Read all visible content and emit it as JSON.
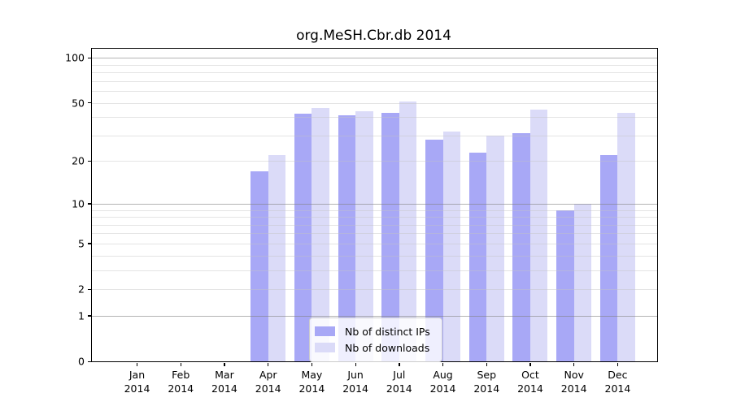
{
  "title": "org.MeSH.Cbr.db 2014",
  "chart_data": {
    "type": "bar",
    "title": "org.MeSH.Cbr.db 2014",
    "year": "2014",
    "categories": [
      "Jan",
      "Feb",
      "Mar",
      "Apr",
      "May",
      "Jun",
      "Jul",
      "Aug",
      "Sep",
      "Oct",
      "Nov",
      "Dec"
    ],
    "series": [
      {
        "name": "Nb of distinct IPs",
        "color": "#a8a8f6",
        "values": [
          0,
          0,
          0,
          17,
          42,
          41,
          43,
          28,
          23,
          31,
          9,
          22
        ]
      },
      {
        "name": "Nb of downloads",
        "color": "#dbdbf8",
        "values": [
          0,
          0,
          0,
          22,
          46,
          44,
          51,
          32,
          30,
          45,
          10,
          43
        ]
      }
    ],
    "ylabel": "",
    "xlabel": "",
    "yscale": "log1p",
    "ylim": [
      0,
      115
    ],
    "yticks": [
      0,
      1,
      2,
      5,
      10,
      20,
      50,
      100
    ],
    "gridlines_major": [
      1,
      10,
      100
    ],
    "gridlines_minor": [
      2,
      3,
      4,
      5,
      6,
      7,
      8,
      9,
      20,
      30,
      40,
      50,
      60,
      70,
      80,
      90
    ],
    "legend_position": "lower center",
    "grid": true
  }
}
